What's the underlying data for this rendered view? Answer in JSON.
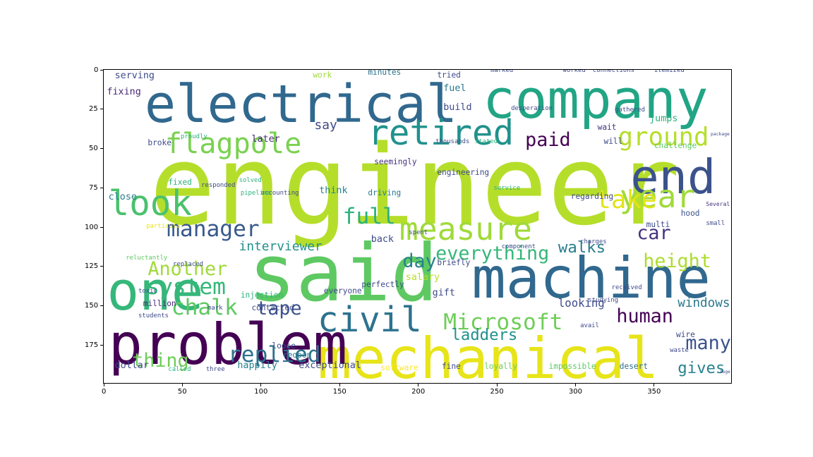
{
  "chart_data": {
    "type": "wordcloud",
    "xlim": [
      0,
      399
    ],
    "ylim": [
      199,
      0
    ],
    "x_ticks": [
      0,
      50,
      100,
      150,
      200,
      250,
      300,
      350
    ],
    "y_ticks": [
      0,
      25,
      50,
      75,
      100,
      125,
      150,
      175
    ],
    "colormap": "viridis",
    "words": [
      {
        "text": "engineer",
        "x": 29,
        "y": 96,
        "size": 70,
        "color": "#b5de2b"
      },
      {
        "text": "said",
        "x": 92,
        "y": 146,
        "size": 50,
        "color": "#5ec962"
      },
      {
        "text": "machine",
        "x": 234,
        "y": 144,
        "size": 36,
        "color": "#31688e"
      },
      {
        "text": "mechanical",
        "x": 136,
        "y": 195,
        "size": 36,
        "color": "#e7e419"
      },
      {
        "text": "problem",
        "x": 3,
        "y": 186,
        "size": 36,
        "color": "#440154"
      },
      {
        "text": "electrical",
        "x": 26,
        "y": 33,
        "size": 33,
        "color": "#31688e"
      },
      {
        "text": "company",
        "x": 241,
        "y": 30,
        "size": 34,
        "color": "#21a585"
      },
      {
        "text": "one",
        "x": 2,
        "y": 152,
        "size": 34,
        "color": "#35b779"
      },
      {
        "text": "end",
        "x": 335,
        "y": 78,
        "size": 30,
        "color": "#3b528b"
      },
      {
        "text": "retired",
        "x": 168,
        "y": 47,
        "size": 22,
        "color": "#21918c"
      },
      {
        "text": "measure",
        "x": 188,
        "y": 108,
        "size": 20,
        "color": "#a0da39"
      },
      {
        "text": "year",
        "x": 328,
        "y": 87,
        "size": 20,
        "color": "#a0da39"
      },
      {
        "text": "look",
        "x": 3,
        "y": 92,
        "size": 22,
        "color": "#4ac16d"
      },
      {
        "text": "civil",
        "x": 136,
        "y": 166,
        "size": 22,
        "color": "#2c728e"
      },
      {
        "text": "flagpole",
        "x": 39,
        "y": 53,
        "size": 18,
        "color": "#7ad151"
      },
      {
        "text": "manager",
        "x": 40,
        "y": 106,
        "size": 14,
        "color": "#38598c"
      },
      {
        "text": "system",
        "x": 27,
        "y": 143,
        "size": 14,
        "color": "#35b779"
      },
      {
        "text": "chalk",
        "x": 43,
        "y": 156,
        "size": 14,
        "color": "#5ec962"
      },
      {
        "text": "replied",
        "x": 79,
        "y": 186,
        "size": 14,
        "color": "#2c728e"
      },
      {
        "text": "thing",
        "x": 18,
        "y": 189,
        "size": 12,
        "color": "#6ece58"
      },
      {
        "text": "Another",
        "x": 28,
        "y": 131,
        "size": 12,
        "color": "#a0da39"
      },
      {
        "text": "tape",
        "x": 97,
        "y": 156,
        "size": 12,
        "color": "#3b528b"
      },
      {
        "text": "Microsoft",
        "x": 216,
        "y": 165,
        "size": 14,
        "color": "#6ece58"
      },
      {
        "text": "ground",
        "x": 327,
        "y": 48,
        "size": 16,
        "color": "#b5de2b"
      },
      {
        "text": "paid",
        "x": 268,
        "y": 49,
        "size": 12,
        "color": "#440154"
      },
      {
        "text": "full",
        "x": 152,
        "y": 98,
        "size": 14,
        "color": "#2db27d"
      },
      {
        "text": "everything",
        "x": 211,
        "y": 121,
        "size": 12,
        "color": "#35b779"
      },
      {
        "text": "height",
        "x": 343,
        "y": 126,
        "size": 12,
        "color": "#addc30"
      },
      {
        "text": "car",
        "x": 339,
        "y": 108,
        "size": 12,
        "color": "#46327e"
      },
      {
        "text": "take",
        "x": 313,
        "y": 88,
        "size": 16,
        "color": "#e2e418"
      },
      {
        "text": "windows",
        "x": 365,
        "y": 158,
        "size": 16,
        "color": "#2a788e"
      },
      {
        "text": "many",
        "x": 370,
        "y": 178,
        "size": 12,
        "color": "#3b528b"
      },
      {
        "text": "human",
        "x": 326,
        "y": 161,
        "size": 12,
        "color": "#440154"
      },
      {
        "text": "gives",
        "x": 365,
        "y": 193,
        "size": 10,
        "color": "#26828e"
      },
      {
        "text": "ladders",
        "x": 221,
        "y": 172,
        "size": 10,
        "color": "#21918c"
      },
      {
        "text": "day",
        "x": 190,
        "y": 126,
        "size": 12,
        "color": "#26828e"
      },
      {
        "text": "walks",
        "x": 289,
        "y": 116,
        "size": 10,
        "color": "#287d8e"
      },
      {
        "text": "interviewer",
        "x": 86,
        "y": 115,
        "size": 8,
        "color": "#21918c"
      },
      {
        "text": "serving",
        "x": 7,
        "y": 6,
        "size": 6,
        "color": "#3e4a89"
      },
      {
        "text": "fixing",
        "x": 2,
        "y": 16,
        "size": 6,
        "color": "#482878"
      },
      {
        "text": "build",
        "x": 216,
        "y": 26,
        "size": 6,
        "color": "#3e4a89"
      },
      {
        "text": "fuel",
        "x": 216,
        "y": 14,
        "size": 6,
        "color": "#2a788e"
      },
      {
        "text": "tried",
        "x": 212,
        "y": 5,
        "size": 5,
        "color": "#3e4a89"
      },
      {
        "text": "minutes",
        "x": 168,
        "y": 3,
        "size": 5,
        "color": "#2c728e"
      },
      {
        "text": "work",
        "x": 133,
        "y": 5,
        "size": 5,
        "color": "#a0da39"
      },
      {
        "text": "say",
        "x": 134,
        "y": 38,
        "size": 8,
        "color": "#3e4a89"
      },
      {
        "text": "later",
        "x": 94,
        "y": 46,
        "size": 6,
        "color": "#482878"
      },
      {
        "text": "broke",
        "x": 28,
        "y": 48,
        "size": 5,
        "color": "#3e4a89"
      },
      {
        "text": "close",
        "x": 3,
        "y": 83,
        "size": 6,
        "color": "#287d8e"
      },
      {
        "text": "fixed",
        "x": 41,
        "y": 73,
        "size": 5,
        "color": "#2db27d"
      },
      {
        "text": "think",
        "x": 137,
        "y": 79,
        "size": 6,
        "color": "#26828e"
      },
      {
        "text": "seemingly",
        "x": 172,
        "y": 60,
        "size": 5,
        "color": "#46327e"
      },
      {
        "text": "driving",
        "x": 168,
        "y": 80,
        "size": 5,
        "color": "#2a788e"
      },
      {
        "text": "engineering",
        "x": 212,
        "y": 67,
        "size": 5,
        "color": "#3e4a89"
      },
      {
        "text": "thousands",
        "x": 211,
        "y": 47,
        "size": 4,
        "color": "#3e4a89"
      },
      {
        "text": "jumps",
        "x": 347,
        "y": 33,
        "size": 6,
        "color": "#2db27d"
      },
      {
        "text": "wait",
        "x": 314,
        "y": 38,
        "size": 5,
        "color": "#46327e"
      },
      {
        "text": "will",
        "x": 318,
        "y": 47,
        "size": 5,
        "color": "#3e4a89"
      },
      {
        "text": "challenge",
        "x": 350,
        "y": 50,
        "size": 5,
        "color": "#5ec962"
      },
      {
        "text": "package",
        "x": 386,
        "y": 45,
        "size": 7,
        "color": "#3e4a89"
      },
      {
        "text": "Several",
        "x": 383,
        "y": 88,
        "size": 5,
        "color": "#46327e"
      },
      {
        "text": "hood",
        "x": 367,
        "y": 93,
        "size": 5,
        "color": "#3b528b"
      },
      {
        "text": "multi",
        "x": 345,
        "y": 100,
        "size": 5,
        "color": "#3e4a89"
      },
      {
        "text": "regarding",
        "x": 297,
        "y": 82,
        "size": 5,
        "color": "#3e4a89"
      },
      {
        "text": "service",
        "x": 248,
        "y": 77,
        "size": 4,
        "color": "#2db27d"
      },
      {
        "text": "back",
        "x": 170,
        "y": 110,
        "size": 6,
        "color": "#3e4a89"
      },
      {
        "text": "salary",
        "x": 192,
        "y": 134,
        "size": 6,
        "color": "#b5de2b"
      },
      {
        "text": "gift",
        "x": 209,
        "y": 144,
        "size": 6,
        "color": "#3e4a89"
      },
      {
        "text": "looking",
        "x": 289,
        "y": 151,
        "size": 7,
        "color": "#3e4a89"
      },
      {
        "text": "injection",
        "x": 87,
        "y": 145,
        "size": 5,
        "color": "#2db27d"
      },
      {
        "text": "contacted",
        "x": 94,
        "y": 153,
        "size": 5,
        "color": "#3e4a89"
      },
      {
        "text": "million",
        "x": 25,
        "y": 150,
        "size": 5,
        "color": "#482878"
      },
      {
        "text": "loose",
        "x": 107,
        "y": 177,
        "size": 5,
        "color": "#3e4a89"
      },
      {
        "text": "reopen",
        "x": 114,
        "y": 183,
        "size": 5,
        "color": "#2a788e"
      },
      {
        "text": "happily",
        "x": 85,
        "y": 190,
        "size": 6,
        "color": "#26828e"
      },
      {
        "text": "exceptional",
        "x": 124,
        "y": 190,
        "size": 6,
        "color": "#3e4a89"
      },
      {
        "text": "software",
        "x": 176,
        "y": 191,
        "size": 5,
        "color": "#fde725"
      },
      {
        "text": "fine",
        "x": 215,
        "y": 190,
        "size": 5,
        "color": "#3e4a89"
      },
      {
        "text": "loyally",
        "x": 242,
        "y": 190,
        "size": 5,
        "color": "#6ece58"
      },
      {
        "text": "impossible",
        "x": 283,
        "y": 190,
        "size": 5,
        "color": "#5ec962"
      },
      {
        "text": "desert",
        "x": 328,
        "y": 190,
        "size": 5,
        "color": "#2c728e"
      },
      {
        "text": "dollar",
        "x": 7,
        "y": 190,
        "size": 6,
        "color": "#3e4a89"
      },
      {
        "text": "called",
        "x": 41,
        "y": 192,
        "size": 4,
        "color": "#2db27d"
      },
      {
        "text": "three",
        "x": 65,
        "y": 192,
        "size": 4,
        "color": "#3e4a89"
      },
      {
        "text": "wire",
        "x": 364,
        "y": 170,
        "size": 5,
        "color": "#3e4a89"
      },
      {
        "text": "avail",
        "x": 303,
        "y": 164,
        "size": 4,
        "color": "#3e4a89"
      },
      {
        "text": "briefly",
        "x": 212,
        "y": 124,
        "size": 5,
        "color": "#3e4a89"
      },
      {
        "text": "perfectly",
        "x": 164,
        "y": 138,
        "size": 5,
        "color": "#3e4a89"
      },
      {
        "text": "everyone",
        "x": 140,
        "y": 142,
        "size": 5,
        "color": "#3e4a89"
      },
      {
        "text": "studying",
        "x": 308,
        "y": 148,
        "size": 4,
        "color": "#3e4a89"
      },
      {
        "text": "received",
        "x": 323,
        "y": 140,
        "size": 4,
        "color": "#3e4a89"
      },
      {
        "text": "charges",
        "x": 303,
        "y": 111,
        "size": 4,
        "color": "#3e4a89"
      },
      {
        "text": "component",
        "x": 253,
        "y": 114,
        "size": 4,
        "color": "#3e4a89"
      },
      {
        "text": "spent",
        "x": 194,
        "y": 105,
        "size": 4,
        "color": "#3e4a89"
      },
      {
        "text": "marked",
        "x": 246,
        "y": 2,
        "size": 4,
        "color": "#3e4a89"
      },
      {
        "text": "worked",
        "x": 292,
        "y": 2,
        "size": 4,
        "color": "#3e4a89"
      },
      {
        "text": "connections",
        "x": 311,
        "y": 2,
        "size": 4,
        "color": "#3e4a89"
      },
      {
        "text": "itemized",
        "x": 350,
        "y": 2,
        "size": 4,
        "color": "#3e4a89"
      },
      {
        "text": "desperation",
        "x": 259,
        "y": 26,
        "size": 4,
        "color": "#3e4a89"
      },
      {
        "text": "gathered",
        "x": 325,
        "y": 27,
        "size": 4,
        "color": "#3e4a89"
      },
      {
        "text": "stated",
        "x": 236,
        "y": 47,
        "size": 4,
        "color": "#2db27d"
      },
      {
        "text": "proudly",
        "x": 49,
        "y": 44,
        "size": 4,
        "color": "#2db27d"
      },
      {
        "text": "solved",
        "x": 86,
        "y": 72,
        "size": 4,
        "color": "#2db27d"
      },
      {
        "text": "accounting",
        "x": 100,
        "y": 80,
        "size": 4,
        "color": "#3e4a89"
      },
      {
        "text": "pipeline",
        "x": 87,
        "y": 80,
        "size": 4,
        "color": "#2db27d"
      },
      {
        "text": "responded",
        "x": 62,
        "y": 75,
        "size": 4,
        "color": "#3e4a89"
      },
      {
        "text": "replaced",
        "x": 44,
        "y": 125,
        "size": 4,
        "color": "#3e4a89"
      },
      {
        "text": "reluctantly",
        "x": 14,
        "y": 121,
        "size": 4,
        "color": "#5ec962"
      },
      {
        "text": "toxic",
        "x": 22,
        "y": 142,
        "size": 4,
        "color": "#3e4a89"
      },
      {
        "text": "particular",
        "x": 27,
        "y": 101,
        "size": 4,
        "color": "#e7e419"
      },
      {
        "text": "students",
        "x": 22,
        "y": 158,
        "size": 4,
        "color": "#3e4a89"
      },
      {
        "text": "mark",
        "x": 66,
        "y": 153,
        "size": 4,
        "color": "#3e4a89"
      },
      {
        "text": "waste",
        "x": 360,
        "y": 180,
        "size": 4,
        "color": "#3e4a89"
      },
      {
        "text": "huge",
        "x": 392,
        "y": 194,
        "size": 4,
        "color": "#3e4a89"
      },
      {
        "text": "small",
        "x": 383,
        "y": 99,
        "size": 4,
        "color": "#3e4a89"
      }
    ]
  }
}
